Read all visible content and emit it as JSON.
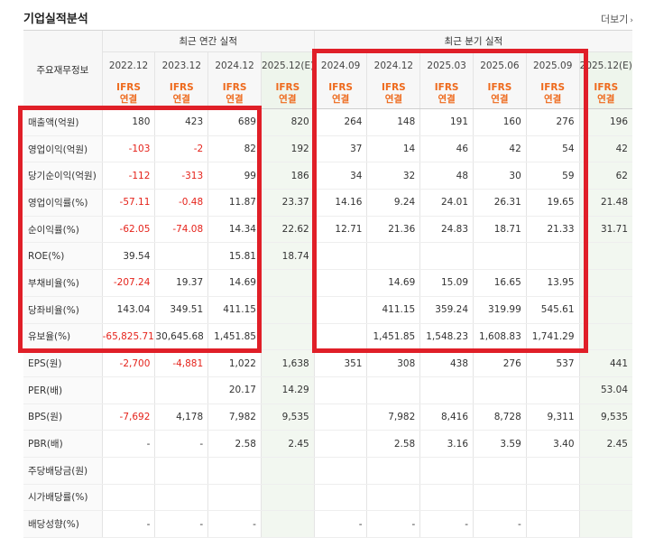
{
  "section_title": "기업실적분석",
  "more_link": "더보기",
  "header": {
    "row_label": "주요재무정보",
    "annual_group": "최근 연간 실적",
    "quarter_group": "최근 분기 실적",
    "annual_periods": [
      "2022.12",
      "2023.12",
      "2024.12",
      "2025.12(E)"
    ],
    "quarter_periods": [
      "2024.09",
      "2024.12",
      "2025.03",
      "2025.06",
      "2025.09",
      "2025.12(E)"
    ],
    "basis_top": "IFRS",
    "basis_bottom": "연결"
  },
  "rows": [
    {
      "label": "매출액(억원)",
      "values": [
        "180",
        "423",
        "689",
        "820",
        "264",
        "148",
        "191",
        "160",
        "276",
        "196"
      ]
    },
    {
      "label": "영업이익(억원)",
      "values": [
        "-103",
        "-2",
        "82",
        "192",
        "37",
        "14",
        "46",
        "42",
        "54",
        "42"
      ]
    },
    {
      "label": "당기순이익(억원)",
      "values": [
        "-112",
        "-313",
        "99",
        "186",
        "34",
        "32",
        "48",
        "30",
        "59",
        "62"
      ]
    },
    {
      "label": "영업이익률(%)",
      "values": [
        "-57.11",
        "-0.48",
        "11.87",
        "23.37",
        "14.16",
        "9.24",
        "24.01",
        "26.31",
        "19.65",
        "21.48"
      ]
    },
    {
      "label": "순이익률(%)",
      "values": [
        "-62.05",
        "-74.08",
        "14.34",
        "22.62",
        "12.71",
        "21.36",
        "24.83",
        "18.71",
        "21.33",
        "31.71"
      ]
    },
    {
      "label": "ROE(%)",
      "values": [
        "39.54",
        "",
        "15.81",
        "18.74",
        "",
        "",
        "",
        "",
        "",
        ""
      ]
    },
    {
      "label": "부채비율(%)",
      "values": [
        "-207.24",
        "19.37",
        "14.69",
        "",
        "",
        "14.69",
        "15.09",
        "16.65",
        "13.95",
        ""
      ]
    },
    {
      "label": "당좌비율(%)",
      "values": [
        "143.04",
        "349.51",
        "411.15",
        "",
        "",
        "411.15",
        "359.24",
        "319.99",
        "545.61",
        ""
      ]
    },
    {
      "label": "유보율(%)",
      "values": [
        "-65,825.71",
        "30,645.68",
        "1,451.85",
        "",
        "",
        "1,451.85",
        "1,548.23",
        "1,608.83",
        "1,741.29",
        ""
      ]
    },
    {
      "label": "EPS(원)",
      "values": [
        "-2,700",
        "-4,881",
        "1,022",
        "1,638",
        "351",
        "308",
        "438",
        "276",
        "537",
        "441"
      ]
    },
    {
      "label": "PER(배)",
      "values": [
        "",
        "",
        "20.17",
        "14.29",
        "",
        "",
        "",
        "",
        "",
        "53.04"
      ]
    },
    {
      "label": "BPS(원)",
      "values": [
        "-7,692",
        "4,178",
        "7,982",
        "9,535",
        "",
        "7,982",
        "8,416",
        "8,728",
        "9,311",
        "9,535"
      ]
    },
    {
      "label": "PBR(배)",
      "values": [
        "-",
        "-",
        "2.58",
        "2.45",
        "",
        "2.58",
        "3.16",
        "3.59",
        "3.40",
        "2.45"
      ]
    },
    {
      "label": "주당배당금(원)",
      "values": [
        "",
        "",
        "",
        "",
        "",
        "",
        "",
        "",
        "",
        ""
      ]
    },
    {
      "label": "시가배당률(%)",
      "values": [
        "",
        "",
        "",
        "",
        "",
        "",
        "",
        "",
        "",
        ""
      ]
    },
    {
      "label": "배당성향(%)",
      "values": [
        "-",
        "-",
        "-",
        "",
        "-",
        "-",
        "-",
        "-",
        "",
        ""
      ]
    }
  ],
  "highlight_color": "#e01f28"
}
